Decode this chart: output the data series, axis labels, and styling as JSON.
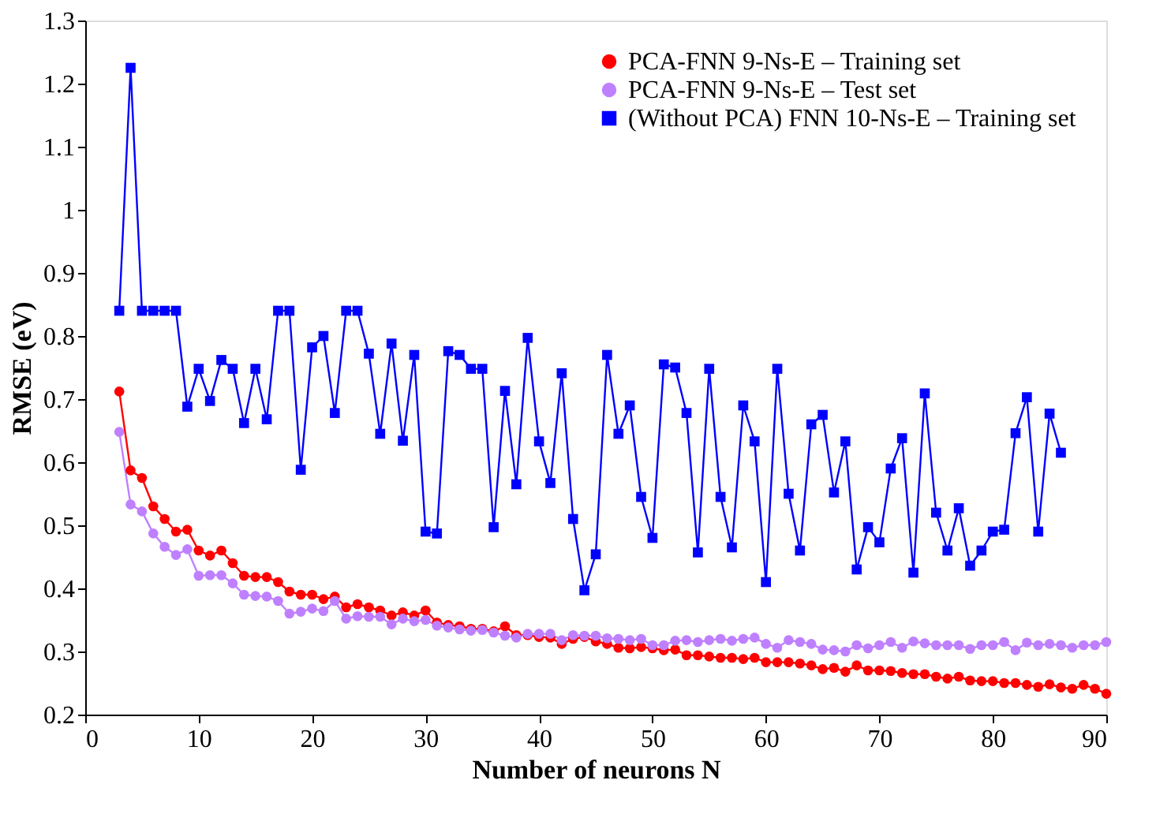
{
  "chart_data": {
    "type": "line",
    "xlabel": "Number of neurons N",
    "ylabel": "RMSE (eV)",
    "xlim": [
      0,
      90
    ],
    "xticks": [
      0,
      10,
      20,
      30,
      40,
      50,
      60,
      70,
      80,
      90
    ],
    "ylim": [
      0.2,
      1.3
    ],
    "yticks": [
      0.2,
      0.3,
      0.4,
      0.5,
      0.6,
      0.7,
      0.8,
      0.9,
      1,
      1.1,
      1.2,
      1.3
    ],
    "grid": false,
    "legend": "top right",
    "series": [
      {
        "name": "PCA-FNN 9-Ns-E – Training set",
        "color": "#ff0000",
        "marker": "circle",
        "x": [
          3,
          4,
          5,
          6,
          7,
          8,
          9,
          10,
          11,
          12,
          13,
          14,
          15,
          16,
          17,
          18,
          19,
          20,
          21,
          22,
          23,
          24,
          25,
          26,
          27,
          28,
          29,
          30,
          31,
          32,
          33,
          34,
          35,
          36,
          37,
          38,
          39,
          40,
          41,
          42,
          43,
          44,
          45,
          46,
          47,
          48,
          49,
          50,
          51,
          52,
          53,
          54,
          55,
          56,
          57,
          58,
          59,
          60,
          61,
          62,
          63,
          64,
          65,
          66,
          67,
          68,
          69,
          70,
          71,
          72,
          73,
          74,
          75,
          76,
          77,
          78,
          79,
          80,
          81,
          82,
          83,
          84,
          85,
          86,
          87,
          88,
          89,
          90
        ],
        "values": [
          0.712,
          0.587,
          0.575,
          0.53,
          0.51,
          0.49,
          0.493,
          0.46,
          0.452,
          0.46,
          0.44,
          0.42,
          0.418,
          0.418,
          0.41,
          0.395,
          0.39,
          0.39,
          0.383,
          0.387,
          0.37,
          0.375,
          0.37,
          0.365,
          0.357,
          0.362,
          0.357,
          0.365,
          0.346,
          0.342,
          0.34,
          0.336,
          0.336,
          0.332,
          0.34,
          0.326,
          0.326,
          0.323,
          0.322,
          0.312,
          0.32,
          0.323,
          0.316,
          0.312,
          0.306,
          0.305,
          0.307,
          0.305,
          0.302,
          0.303,
          0.294,
          0.294,
          0.292,
          0.29,
          0.29,
          0.288,
          0.29,
          0.283,
          0.283,
          0.283,
          0.281,
          0.278,
          0.272,
          0.274,
          0.268,
          0.278,
          0.27,
          0.27,
          0.269,
          0.266,
          0.264,
          0.264,
          0.26,
          0.257,
          0.26,
          0.254,
          0.253,
          0.253,
          0.25,
          0.25,
          0.247,
          0.244,
          0.248,
          0.243,
          0.241,
          0.247,
          0.241,
          0.233
        ]
      },
      {
        "name": "PCA-FNN 9-Ns-E – Test set",
        "color": "#bf80ff",
        "marker": "circle",
        "x": [
          3,
          4,
          5,
          6,
          7,
          8,
          9,
          10,
          11,
          12,
          13,
          14,
          15,
          16,
          17,
          18,
          19,
          20,
          21,
          22,
          23,
          24,
          25,
          26,
          27,
          28,
          29,
          30,
          31,
          32,
          33,
          34,
          35,
          36,
          37,
          38,
          39,
          40,
          41,
          42,
          43,
          44,
          45,
          46,
          47,
          48,
          49,
          50,
          51,
          52,
          53,
          54,
          55,
          56,
          57,
          58,
          59,
          60,
          61,
          62,
          63,
          64,
          65,
          66,
          67,
          68,
          69,
          70,
          71,
          72,
          73,
          74,
          75,
          76,
          77,
          78,
          79,
          80,
          81,
          82,
          83,
          84,
          85,
          86,
          87,
          88,
          89,
          90
        ],
        "values": [
          0.648,
          0.533,
          0.522,
          0.487,
          0.466,
          0.453,
          0.462,
          0.42,
          0.421,
          0.421,
          0.408,
          0.39,
          0.388,
          0.387,
          0.38,
          0.36,
          0.363,
          0.368,
          0.364,
          0.38,
          0.352,
          0.356,
          0.355,
          0.355,
          0.343,
          0.352,
          0.348,
          0.35,
          0.341,
          0.338,
          0.335,
          0.333,
          0.334,
          0.33,
          0.325,
          0.322,
          0.328,
          0.328,
          0.328,
          0.318,
          0.326,
          0.325,
          0.325,
          0.321,
          0.32,
          0.318,
          0.32,
          0.31,
          0.31,
          0.317,
          0.318,
          0.315,
          0.318,
          0.32,
          0.317,
          0.32,
          0.322,
          0.312,
          0.306,
          0.318,
          0.315,
          0.312,
          0.303,
          0.302,
          0.3,
          0.31,
          0.305,
          0.31,
          0.315,
          0.306,
          0.316,
          0.313,
          0.31,
          0.31,
          0.31,
          0.304,
          0.31,
          0.31,
          0.315,
          0.302,
          0.314,
          0.31,
          0.312,
          0.31,
          0.306,
          0.31,
          0.31,
          0.315
        ]
      },
      {
        "name": "(Without PCA) FNN 10-Ns-E – Training set",
        "color": "#0000ff",
        "marker": "square",
        "x": [
          3,
          4,
          5,
          6,
          7,
          8,
          9,
          10,
          11,
          12,
          13,
          14,
          15,
          16,
          17,
          18,
          19,
          20,
          21,
          22,
          23,
          24,
          25,
          26,
          27,
          28,
          29,
          30,
          31,
          32,
          33,
          34,
          35,
          36,
          37,
          38,
          39,
          40,
          41,
          42,
          43,
          44,
          45,
          46,
          47,
          48,
          49,
          50,
          51,
          52,
          53,
          54,
          55,
          56,
          57,
          58,
          59,
          60,
          61,
          62,
          63,
          64,
          65,
          66,
          67,
          68,
          69,
          70,
          71,
          72,
          73,
          74,
          75,
          76,
          77,
          78,
          79,
          80,
          81,
          82,
          83,
          84,
          85,
          86
        ],
        "values": [
          0.84,
          1.225,
          0.84,
          0.84,
          0.84,
          0.84,
          0.688,
          0.748,
          0.697,
          0.762,
          0.748,
          0.662,
          0.748,
          0.668,
          0.84,
          0.84,
          0.588,
          0.782,
          0.8,
          0.678,
          0.84,
          0.84,
          0.772,
          0.645,
          0.788,
          0.634,
          0.77,
          0.49,
          0.487,
          0.776,
          0.77,
          0.748,
          0.748,
          0.497,
          0.713,
          0.565,
          0.797,
          0.633,
          0.567,
          0.741,
          0.51,
          0.397,
          0.454,
          0.77,
          0.645,
          0.69,
          0.545,
          0.48,
          0.755,
          0.75,
          0.678,
          0.457,
          0.748,
          0.545,
          0.465,
          0.69,
          0.633,
          0.41,
          0.748,
          0.55,
          0.46,
          0.66,
          0.675,
          0.552,
          0.633,
          0.43,
          0.497,
          0.473,
          0.59,
          0.638,
          0.425,
          0.709,
          0.52,
          0.46,
          0.527,
          0.436,
          0.46,
          0.49,
          0.493,
          0.646,
          0.703,
          0.49,
          0.677,
          0.615
        ]
      }
    ]
  }
}
